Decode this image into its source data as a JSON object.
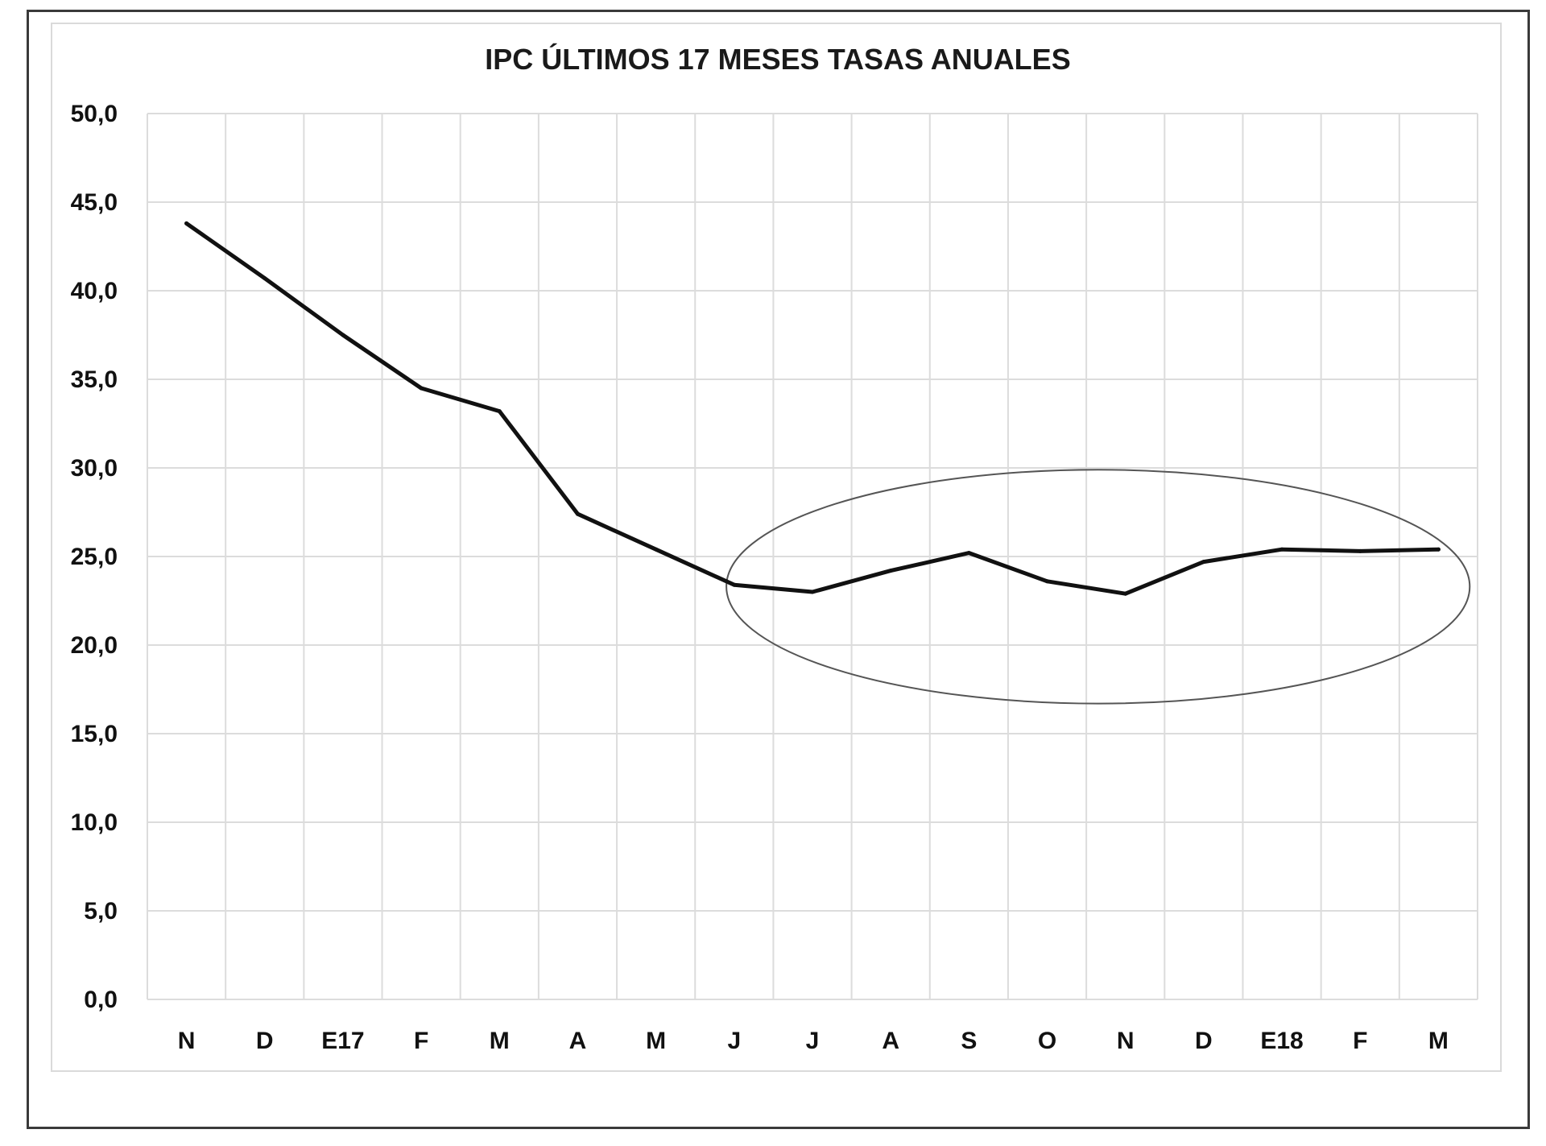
{
  "chart_data": {
    "type": "line",
    "title": "IPC ÚLTIMOS 17 MESES TASAS ANUALES",
    "xlabel": "",
    "ylabel": "",
    "categories": [
      "N",
      "D",
      "E17",
      "F",
      "M",
      "A",
      "M",
      "J",
      "J",
      "A",
      "S",
      "O",
      "N",
      "D",
      "E18",
      "F",
      "M"
    ],
    "series": [
      {
        "values": [
          43.8,
          40.7,
          37.5,
          34.5,
          33.2,
          27.4,
          25.4,
          23.4,
          23.0,
          24.2,
          25.2,
          23.6,
          22.9,
          24.7,
          25.4,
          25.3,
          25.4
        ]
      }
    ],
    "ylim": [
      0,
      50
    ],
    "yticks": [
      "0,0",
      "5,0",
      "10,0",
      "15,0",
      "20,0",
      "25,0",
      "30,0",
      "35,0",
      "40,0",
      "45,0",
      "50,0"
    ],
    "grid": true,
    "legend": "none",
    "annotation": {
      "shape": "ellipse",
      "x_from_category_index": 7,
      "x_to_category_index": 16,
      "y_range": [
        16.7,
        29.9
      ]
    },
    "colors": {
      "line": "#111111",
      "grid": "#dcdcdc",
      "annotation": "#555555"
    }
  }
}
